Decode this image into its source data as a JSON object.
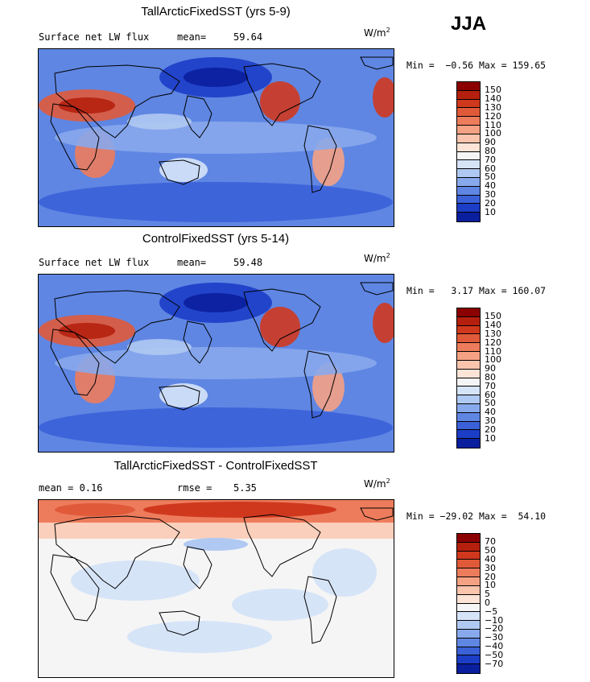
{
  "season": "JJA",
  "panels": [
    {
      "title": "TallArcticFixedSST (yrs 5-9)",
      "left_label": "Surface net LW flux",
      "stat_label": "mean=",
      "stat_value": "59.64",
      "units": "W/m",
      "units_exp": "2",
      "minmax": "Min =  −0.56 Max = 159.65",
      "colorbar": {
        "labels": [
          "150",
          "140",
          "130",
          "120",
          "110",
          "100",
          "90",
          "80",
          "70",
          "60",
          "50",
          "40",
          "30",
          "20",
          "10"
        ],
        "colors": [
          "#8b0000",
          "#b5200e",
          "#d0381e",
          "#e05a3a",
          "#ed7c5c",
          "#f5a184",
          "#fbc5ad",
          "#fde4d6",
          "#f5f5f5",
          "#d6e4f8",
          "#b0c9f2",
          "#88a9ec",
          "#5f86e3",
          "#3b61d8",
          "#1c3dc6",
          "#0a1f9e"
        ]
      },
      "map_style": "full"
    },
    {
      "title": "ControlFixedSST (yrs 5-14)",
      "left_label": "Surface net LW flux",
      "stat_label": "mean=",
      "stat_value": "59.48",
      "units": "W/m",
      "units_exp": "2",
      "minmax": "Min =   3.17 Max = 160.07",
      "colorbar": {
        "labels": [
          "150",
          "140",
          "130",
          "120",
          "110",
          "100",
          "90",
          "80",
          "70",
          "60",
          "50",
          "40",
          "30",
          "20",
          "10"
        ],
        "colors": [
          "#8b0000",
          "#b5200e",
          "#d0381e",
          "#e05a3a",
          "#ed7c5c",
          "#f5a184",
          "#fbc5ad",
          "#fde4d6",
          "#f5f5f5",
          "#d6e4f8",
          "#b0c9f2",
          "#88a9ec",
          "#5f86e3",
          "#3b61d8",
          "#1c3dc6",
          "#0a1f9e"
        ]
      },
      "map_style": "full"
    },
    {
      "title": "TallArcticFixedSST - ControlFixedSST",
      "left_label": "mean =   0.16",
      "stat_label": "rmse =",
      "stat_value": "5.35",
      "units": "W/m",
      "units_exp": "2",
      "minmax": "Min = −29.02 Max =  54.10",
      "colorbar": {
        "labels": [
          "70",
          "50",
          "40",
          "30",
          "20",
          "10",
          "5",
          "0",
          "−5",
          "−10",
          "−20",
          "−30",
          "−40",
          "−50",
          "−70"
        ],
        "colors": [
          "#8b0000",
          "#b5200e",
          "#d0381e",
          "#e05a3a",
          "#ed7c5c",
          "#f5a184",
          "#fbc5ad",
          "#fde4d6",
          "#f5f5f5",
          "#d6e4f8",
          "#b0c9f2",
          "#88a9ec",
          "#5f86e3",
          "#3b61d8",
          "#1c3dc6",
          "#0a1f9e"
        ]
      },
      "map_style": "diff"
    }
  ]
}
